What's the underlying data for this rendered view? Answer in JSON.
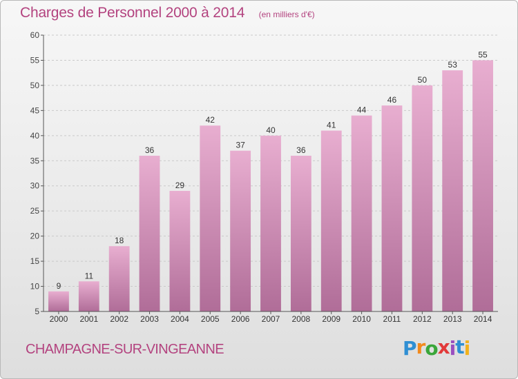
{
  "header": {
    "title": "Charges de Personnel 2000 à 2014",
    "subtitle": "(en milliers d'€)"
  },
  "footer": {
    "commune": "CHAMPAGNE-SUR-VINGEANNE",
    "logo_text": "Proxiti",
    "logo_letters": [
      {
        "ch": "P",
        "color": "#2f8fd3"
      },
      {
        "ch": "r",
        "color": "#f28a1c"
      },
      {
        "ch": "o",
        "color": "#3aa63a"
      },
      {
        "ch": "x",
        "color": "#e23a3a"
      },
      {
        "ch": "i",
        "color": "#9a4fc0"
      },
      {
        "ch": "t",
        "color": "#2f8fd3"
      },
      {
        "ch": "i",
        "color": "#f2b21c"
      }
    ]
  },
  "colors": {
    "bar_light": "#e8aed0",
    "bar_dark": "#b06d98",
    "text_accent": "#b3437f",
    "grid": "#c9c9c9"
  },
  "chart_data": {
    "type": "bar",
    "title": "Charges de Personnel 2000 à 2014",
    "subtitle": "(en milliers d'€)",
    "categories": [
      "2000",
      "2001",
      "2002",
      "2003",
      "2004",
      "2005",
      "2006",
      "2007",
      "2008",
      "2009",
      "2010",
      "2011",
      "2012",
      "2013",
      "2014"
    ],
    "values": [
      9,
      11,
      18,
      36,
      29,
      42,
      37,
      40,
      36,
      41,
      44,
      46,
      50,
      53,
      55
    ],
    "ylim": [
      5,
      60
    ],
    "yticks": [
      5,
      10,
      15,
      20,
      25,
      30,
      35,
      40,
      45,
      50,
      55,
      60
    ],
    "grid": true,
    "data_labels": true
  }
}
